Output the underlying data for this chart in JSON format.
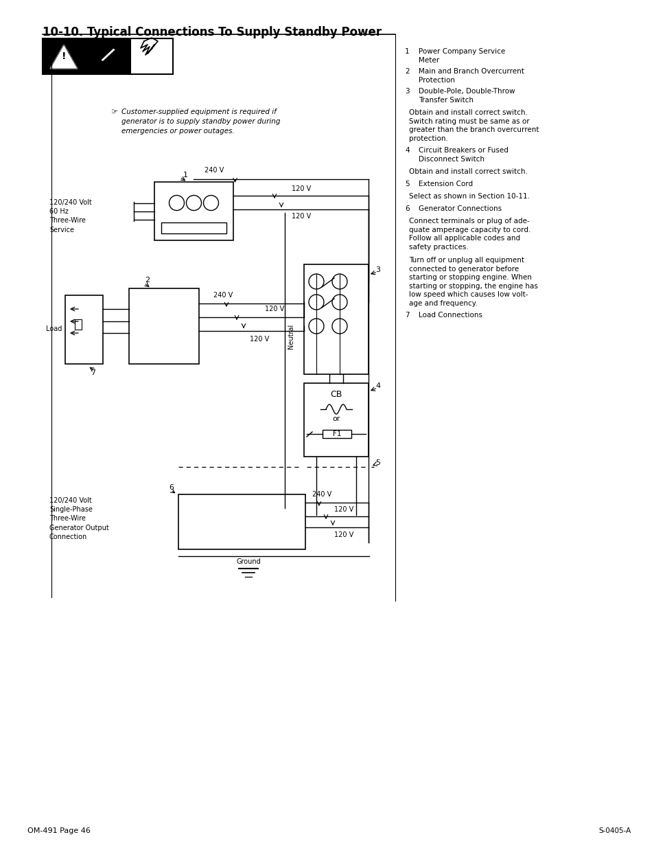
{
  "title": "10-10. Typical Connections To Supply Standby Power",
  "page_footer": "OM-491 Page 46",
  "ref_code": "S-0405-A",
  "note_text_line1": "Customer-supplied equipment is required if",
  "note_text_line2": "generator is to supply standby power during",
  "note_text_line3": "emergencies or power outages.",
  "label_service": "120/240 Volt\n60 Hz\nThree-Wire\nService",
  "label_load": "Load",
  "label_gen_out": "120/240 Volt\nSingle-Phase\nThree-Wire\nGenerator Output\nConnection",
  "label_neutral": "Neutral",
  "label_ground": "Ground",
  "label_cb": "CB",
  "label_or": "or",
  "label_f1": "F1",
  "right_items": [
    {
      "num": "1",
      "label": "Power Company Service",
      "label2": "Meter"
    },
    {
      "num": "2",
      "label": "Main and Branch Overcurrent",
      "label2": "Protection"
    },
    {
      "num": "3",
      "label": "Double-Pole, Double-Throw",
      "label2": "Transfer Switch"
    },
    {
      "num": "",
      "label": "Obtain and install correct switch.",
      "label2": "Switch rating must be same as or",
      "label3": "greater than the branch overcurrent",
      "label4": "protection."
    },
    {
      "num": "4",
      "label": "Circuit Breakers or Fused",
      "label2": "Disconnect Switch"
    },
    {
      "num": "",
      "label": "Obtain and install correct switch.",
      "label2": ""
    },
    {
      "num": "5",
      "label": "Extension Cord",
      "label2": ""
    },
    {
      "num": "",
      "label": "Select as shown in Section 10-11.",
      "label2": ""
    },
    {
      "num": "6",
      "label": "Generator Connections",
      "label2": ""
    },
    {
      "num": "",
      "label": "Connect terminals or plug of ade-",
      "label2": "quate amperage capacity to cord.",
      "label3": "Follow all applicable codes and",
      "label4": "safety practices."
    },
    {
      "num": "",
      "label": "Turn off or unplug all equipment",
      "label2": "connected to generator before",
      "label3": "starting or stopping engine. When",
      "label4": "starting or stopping, the engine has",
      "label5": "low speed which causes low volt-",
      "label6": "age and frequency."
    },
    {
      "num": "7",
      "label": "Load Connections",
      "label2": ""
    }
  ],
  "bg_color": "#ffffff",
  "line_color": "#000000"
}
